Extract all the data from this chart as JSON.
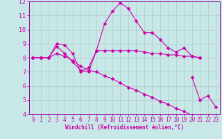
{
  "xlabel": "Windchill (Refroidissement éolien,°C)",
  "background_color": "#c8e8e8",
  "grid_color": "#b0c8c8",
  "line_color": "#cc00aa",
  "spine_color": "#9900aa",
  "x_hours": [
    0,
    1,
    2,
    3,
    4,
    5,
    6,
    7,
    8,
    9,
    10,
    11,
    12,
    13,
    14,
    15,
    16,
    17,
    18,
    19,
    20,
    21,
    22,
    23
  ],
  "line1": [
    8.0,
    8.0,
    8.0,
    9.0,
    8.9,
    8.3,
    7.0,
    7.3,
    8.5,
    10.4,
    11.3,
    11.9,
    11.5,
    10.6,
    9.8,
    9.8,
    9.3,
    8.7,
    8.4,
    8.7,
    8.1,
    8.0,
    null,
    null
  ],
  "line2": [
    8.0,
    8.0,
    8.0,
    8.8,
    8.3,
    7.7,
    7.1,
    7.0,
    8.5,
    8.5,
    8.5,
    8.5,
    8.5,
    8.5,
    8.4,
    8.3,
    8.3,
    8.2,
    8.2,
    8.1,
    8.1,
    8.0,
    null,
    null
  ],
  "line3": [
    8.0,
    8.0,
    8.0,
    8.3,
    8.1,
    7.8,
    7.4,
    7.1,
    7.0,
    6.7,
    6.5,
    6.2,
    5.9,
    5.7,
    5.4,
    5.2,
    4.9,
    4.7,
    4.4,
    4.2,
    3.9,
    3.7,
    null,
    null
  ],
  "line4": [
    null,
    null,
    null,
    null,
    null,
    null,
    null,
    null,
    null,
    null,
    null,
    null,
    null,
    null,
    null,
    null,
    null,
    null,
    null,
    null,
    6.6,
    5.0,
    5.3,
    4.5
  ],
  "ylim": [
    4,
    12
  ],
  "xlim": [
    -0.5,
    23.5
  ],
  "yticks": [
    4,
    5,
    6,
    7,
    8,
    9,
    10,
    11,
    12
  ],
  "xticks": [
    0,
    1,
    2,
    3,
    4,
    5,
    6,
    7,
    8,
    9,
    10,
    11,
    12,
    13,
    14,
    15,
    16,
    17,
    18,
    19,
    20,
    21,
    22,
    23
  ],
  "tick_fontsize": 5.5,
  "xlabel_fontsize": 5.5,
  "lw": 0.8,
  "ms": 2.5
}
